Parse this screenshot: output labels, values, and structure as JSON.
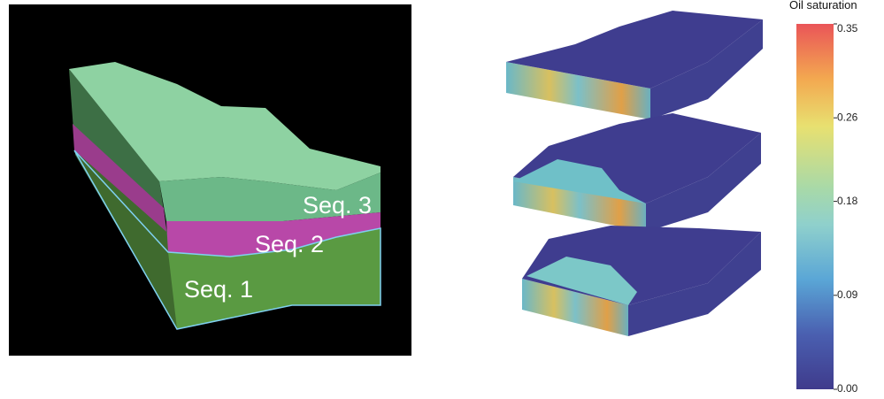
{
  "model_labels": [
    "Seq. 3",
    "Seq. 2",
    "Seq. 1"
  ],
  "colorbar": {
    "title": "Oil saturation",
    "lim": [
      0,
      0.35
    ],
    "ticks": [
      {
        "value": 0,
        "label": "0.00"
      },
      0.09,
      0.18,
      0.26,
      0.35
    ]
  }
}
